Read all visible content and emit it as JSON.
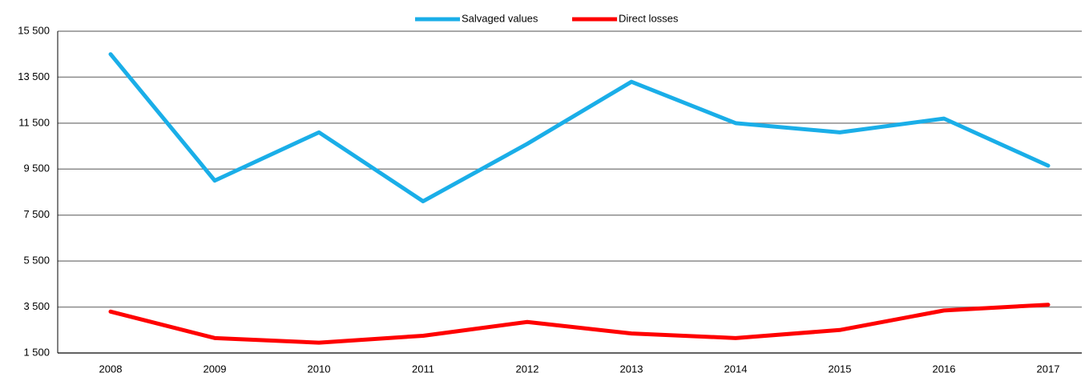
{
  "chart_data": {
    "type": "line",
    "categories": [
      "2008",
      "2009",
      "2010",
      "2011",
      "2012",
      "2013",
      "2014",
      "2015",
      "2016",
      "2017"
    ],
    "series": [
      {
        "name": "Salvaged values",
        "color": "#1aaee8",
        "values": [
          14500,
          9000,
          11100,
          8100,
          10600,
          13300,
          11500,
          11100,
          11700,
          9650
        ]
      },
      {
        "name": "Direct losses",
        "color": "#ff0000",
        "values": [
          3300,
          2150,
          1950,
          2250,
          2850,
          2350,
          2150,
          2500,
          3350,
          3600
        ]
      }
    ],
    "ylim": [
      1500,
      15500
    ],
    "yticks": [
      {
        "value": 1500,
        "label": "1 500"
      },
      {
        "value": 3500,
        "label": "3 500"
      },
      {
        "value": 5500,
        "label": "5 500"
      },
      {
        "value": 7500,
        "label": "7 500"
      },
      {
        "value": 9500,
        "label": "9 500"
      },
      {
        "value": 11500,
        "label": "11 500"
      },
      {
        "value": 13500,
        "label": "13 500"
      },
      {
        "value": 15500,
        "label": "15 500"
      }
    ],
    "grid": true,
    "legend": "top"
  }
}
